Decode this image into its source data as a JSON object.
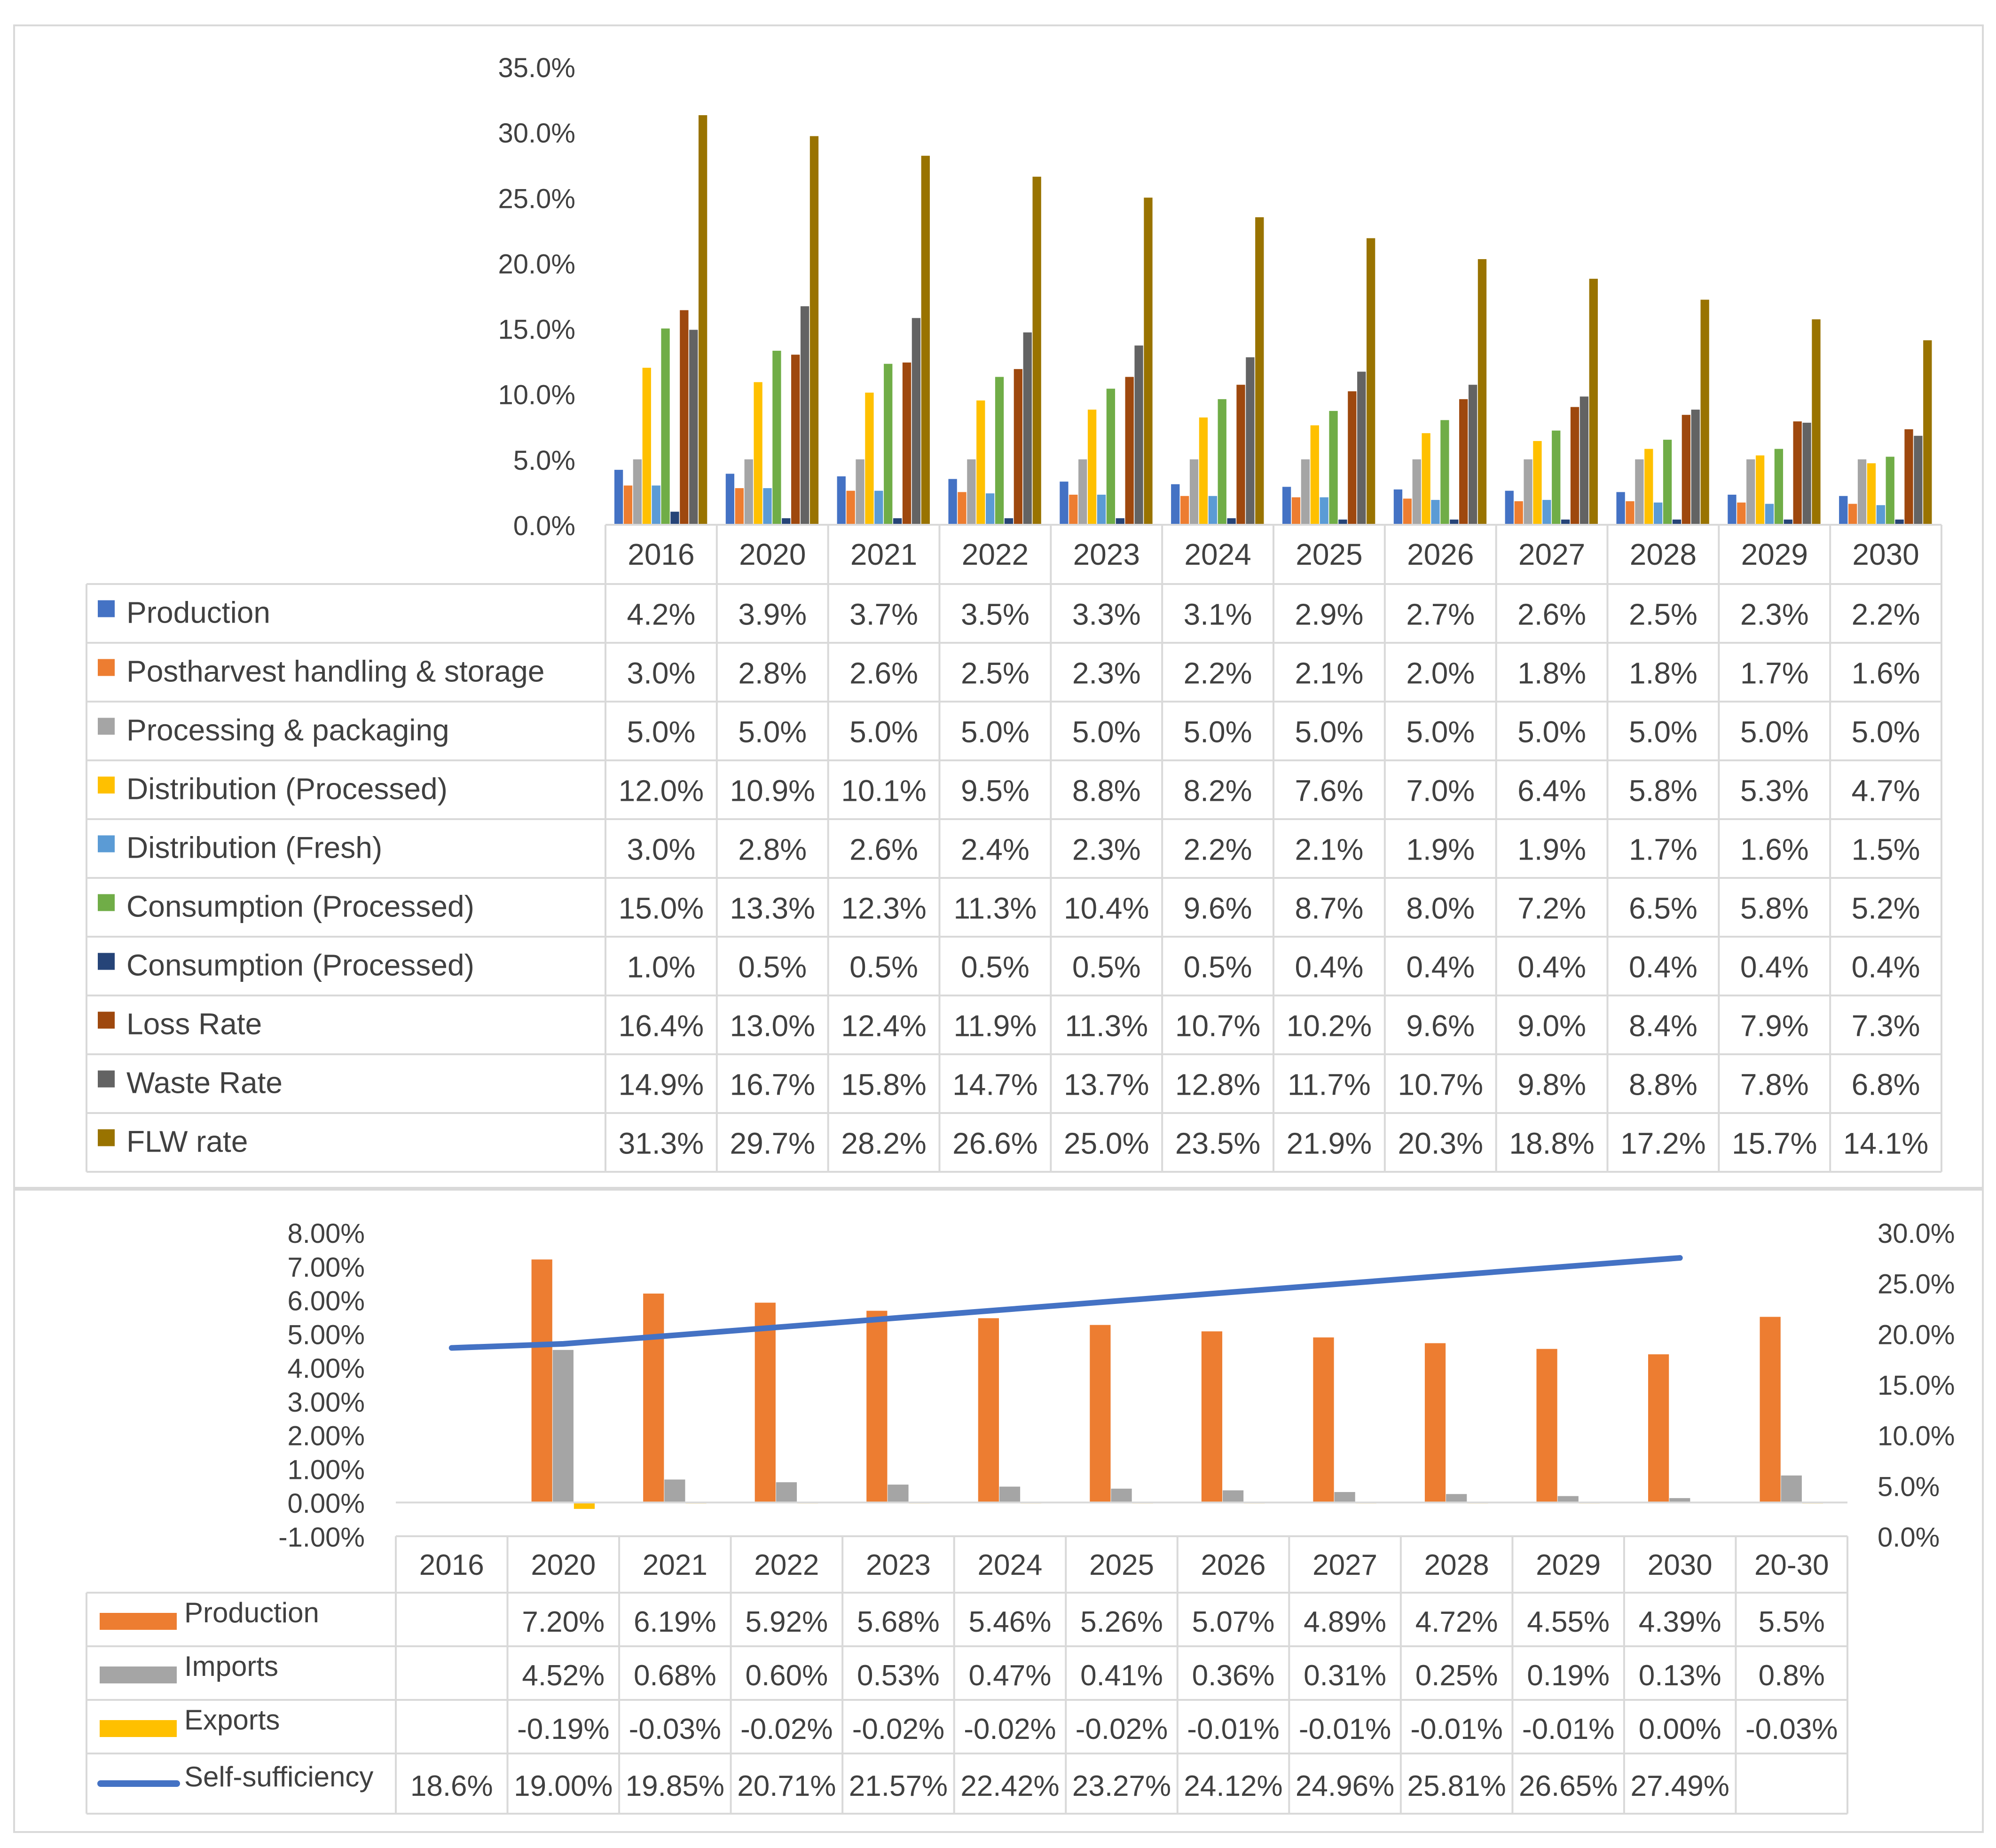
{
  "chart_data": [
    {
      "type": "bar",
      "title": "",
      "categories": [
        "2016",
        "2020",
        "2021",
        "2022",
        "2023",
        "2024",
        "2025",
        "2026",
        "2027",
        "2028",
        "2029",
        "2030"
      ],
      "series": [
        {
          "name": "Production",
          "color": "#4472c4",
          "values": [
            4.2,
            3.9,
            3.7,
            3.5,
            3.3,
            3.1,
            2.9,
            2.7,
            2.6,
            2.5,
            2.3,
            2.2
          ],
          "labels": [
            "4.2%",
            "3.9%",
            "3.7%",
            "3.5%",
            "3.3%",
            "3.1%",
            "2.9%",
            "2.7%",
            "2.6%",
            "2.5%",
            "2.3%",
            "2.2%"
          ]
        },
        {
          "name": "Postharvest handling & storage",
          "color": "#ed7d31",
          "values": [
            3.0,
            2.8,
            2.6,
            2.5,
            2.3,
            2.2,
            2.1,
            2.0,
            1.8,
            1.8,
            1.7,
            1.6
          ],
          "labels": [
            "3.0%",
            "2.8%",
            "2.6%",
            "2.5%",
            "2.3%",
            "2.2%",
            "2.1%",
            "2.0%",
            "1.8%",
            "1.8%",
            "1.7%",
            "1.6%"
          ]
        },
        {
          "name": "Processing & packaging",
          "color": "#a5a5a5",
          "values": [
            5.0,
            5.0,
            5.0,
            5.0,
            5.0,
            5.0,
            5.0,
            5.0,
            5.0,
            5.0,
            5.0,
            5.0
          ],
          "labels": [
            "5.0%",
            "5.0%",
            "5.0%",
            "5.0%",
            "5.0%",
            "5.0%",
            "5.0%",
            "5.0%",
            "5.0%",
            "5.0%",
            "5.0%",
            "5.0%"
          ]
        },
        {
          "name": "Distribution (Processed)",
          "color": "#ffc000",
          "values": [
            12.0,
            10.9,
            10.1,
            9.5,
            8.8,
            8.2,
            7.6,
            7.0,
            6.4,
            5.8,
            5.3,
            4.7
          ],
          "labels": [
            "12.0%",
            "10.9%",
            "10.1%",
            "9.5%",
            "8.8%",
            "8.2%",
            "7.6%",
            "7.0%",
            "6.4%",
            "5.8%",
            "5.3%",
            "4.7%"
          ]
        },
        {
          "name": "Distribution (Fresh)",
          "color": "#5b9bd5",
          "values": [
            3.0,
            2.8,
            2.6,
            2.4,
            2.3,
            2.2,
            2.1,
            1.9,
            1.9,
            1.7,
            1.6,
            1.5
          ],
          "labels": [
            "3.0%",
            "2.8%",
            "2.6%",
            "2.4%",
            "2.3%",
            "2.2%",
            "2.1%",
            "1.9%",
            "1.9%",
            "1.7%",
            "1.6%",
            "1.5%"
          ]
        },
        {
          "name": "Consumption (Processed)",
          "color": "#70ad47",
          "values": [
            15.0,
            13.3,
            12.3,
            11.3,
            10.4,
            9.6,
            8.7,
            8.0,
            7.2,
            6.5,
            5.8,
            5.2
          ],
          "labels": [
            "15.0%",
            "13.3%",
            "12.3%",
            "11.3%",
            "10.4%",
            "9.6%",
            "8.7%",
            "8.0%",
            "7.2%",
            "6.5%",
            "5.8%",
            "5.2%"
          ]
        },
        {
          "name": "Consumption (Processed)",
          "color": "#264478",
          "values": [
            1.0,
            0.5,
            0.5,
            0.5,
            0.5,
            0.5,
            0.4,
            0.4,
            0.4,
            0.4,
            0.4,
            0.4
          ],
          "labels": [
            "1.0%",
            "0.5%",
            "0.5%",
            "0.5%",
            "0.5%",
            "0.5%",
            "0.4%",
            "0.4%",
            "0.4%",
            "0.4%",
            "0.4%",
            "0.4%"
          ]
        },
        {
          "name": "Loss Rate",
          "color": "#9e480e",
          "values": [
            16.4,
            13.0,
            12.4,
            11.9,
            11.3,
            10.7,
            10.2,
            9.6,
            9.0,
            8.4,
            7.9,
            7.3
          ],
          "labels": [
            "16.4%",
            "13.0%",
            "12.4%",
            "11.9%",
            "11.3%",
            "10.7%",
            "10.2%",
            "9.6%",
            "9.0%",
            "8.4%",
            "7.9%",
            "7.3%"
          ]
        },
        {
          "name": "Waste Rate",
          "color": "#636363",
          "values": [
            14.9,
            16.7,
            15.8,
            14.7,
            13.7,
            12.8,
            11.7,
            10.7,
            9.8,
            8.8,
            7.8,
            6.8
          ],
          "labels": [
            "14.9%",
            "16.7%",
            "15.8%",
            "14.7%",
            "13.7%",
            "12.8%",
            "11.7%",
            "10.7%",
            "9.8%",
            "8.8%",
            "7.8%",
            "6.8%"
          ]
        },
        {
          "name": "FLW rate",
          "color": "#997300",
          "values": [
            31.3,
            29.7,
            28.2,
            26.6,
            25.0,
            23.5,
            21.9,
            20.3,
            18.8,
            17.2,
            15.7,
            14.1
          ],
          "labels": [
            "31.3%",
            "29.7%",
            "28.2%",
            "26.6%",
            "25.0%",
            "23.5%",
            "21.9%",
            "20.3%",
            "18.8%",
            "17.2%",
            "15.7%",
            "14.1%"
          ]
        }
      ],
      "ylim": [
        0,
        35
      ],
      "yticks": [
        "0.0%",
        "5.0%",
        "10.0%",
        "15.0%",
        "20.0%",
        "25.0%",
        "30.0%",
        "35.0%"
      ],
      "grid": false
    },
    {
      "type": "bar+line",
      "title": "",
      "categories": [
        "2016",
        "2020",
        "2021",
        "2022",
        "2023",
        "2024",
        "2025",
        "2026",
        "2027",
        "2028",
        "2029",
        "2030",
        "20-30"
      ],
      "series": [
        {
          "name": "Production",
          "axis": "left",
          "color": "#ed7d31",
          "values": [
            null,
            7.2,
            6.19,
            5.92,
            5.68,
            5.46,
            5.26,
            5.07,
            4.89,
            4.72,
            4.55,
            4.39,
            5.5
          ],
          "labels": [
            "",
            "7.20%",
            "6.19%",
            "5.92%",
            "5.68%",
            "5.46%",
            "5.26%",
            "5.07%",
            "4.89%",
            "4.72%",
            "4.55%",
            "4.39%",
            "5.5%"
          ]
        },
        {
          "name": "Imports",
          "axis": "left",
          "color": "#a5a5a5",
          "values": [
            null,
            4.52,
            0.68,
            0.6,
            0.53,
            0.47,
            0.41,
            0.36,
            0.31,
            0.25,
            0.19,
            0.13,
            0.8
          ],
          "labels": [
            "",
            "4.52%",
            "0.68%",
            "0.60%",
            "0.53%",
            "0.47%",
            "0.41%",
            "0.36%",
            "0.31%",
            "0.25%",
            "0.19%",
            "0.13%",
            "0.8%"
          ]
        },
        {
          "name": "Exports",
          "axis": "left",
          "color": "#ffc000",
          "values": [
            null,
            -0.19,
            -0.03,
            -0.02,
            -0.02,
            -0.02,
            -0.02,
            -0.01,
            -0.01,
            -0.01,
            -0.01,
            0.0,
            -0.03
          ],
          "labels": [
            "",
            "-0.19%",
            "-0.03%",
            "-0.02%",
            "-0.02%",
            "-0.02%",
            "-0.02%",
            "-0.01%",
            "-0.01%",
            "-0.01%",
            "-0.01%",
            "0.00%",
            "-0.03%"
          ]
        },
        {
          "name": "Self-sufficiency",
          "axis": "right",
          "type": "line",
          "color": "#4472c4",
          "values": [
            18.6,
            19.0,
            19.85,
            20.71,
            21.57,
            22.42,
            23.27,
            24.12,
            24.96,
            25.81,
            26.65,
            27.49,
            null
          ],
          "labels": [
            "18.6%",
            "19.00%",
            "19.85%",
            "20.71%",
            "21.57%",
            "22.42%",
            "23.27%",
            "24.12%",
            "24.96%",
            "25.81%",
            "26.65%",
            "27.49%",
            ""
          ]
        }
      ],
      "ylim": [
        -1,
        8
      ],
      "yticks": [
        "-1.00%",
        "0.00%",
        "1.00%",
        "2.00%",
        "3.00%",
        "4.00%",
        "5.00%",
        "6.00%",
        "7.00%",
        "8.00%"
      ],
      "y2lim": [
        0,
        30
      ],
      "y2ticks": [
        "0.0%",
        "5.0%",
        "10.0%",
        "15.0%",
        "20.0%",
        "25.0%",
        "30.0%"
      ],
      "grid": false
    }
  ]
}
